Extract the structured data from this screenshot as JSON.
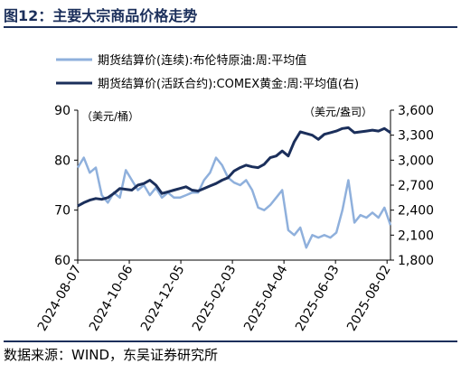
{
  "title": "图12：主要大宗商品价格走势",
  "source": "数据来源：WIND，东吴证券研究所",
  "chart_data": {
    "type": "line",
    "grid": false,
    "legend_position": "top",
    "left_unit": "（美元/桶）",
    "right_unit": "（美元/盎司）",
    "y_left": {
      "min": 60,
      "max": 90,
      "ticks": [
        "60",
        "70",
        "80",
        "90"
      ]
    },
    "y_right": {
      "min": 1800,
      "max": 3600,
      "ticks": [
        "1,800",
        "2,100",
        "2,400",
        "2,700",
        "3,000",
        "3,300",
        "3,600"
      ]
    },
    "x": [
      "2024-08-07",
      "2024-08-14",
      "2024-08-21",
      "2024-08-28",
      "2024-09-04",
      "2024-09-11",
      "2024-09-18",
      "2024-09-25",
      "2024-10-02",
      "2024-10-09",
      "2024-10-16",
      "2024-10-23",
      "2024-10-30",
      "2024-11-06",
      "2024-11-13",
      "2024-11-20",
      "2024-11-27",
      "2024-12-04",
      "2024-12-11",
      "2024-12-18",
      "2024-12-25",
      "2025-01-01",
      "2025-01-08",
      "2025-01-15",
      "2025-01-22",
      "2025-01-29",
      "2025-02-05",
      "2025-02-12",
      "2025-02-19",
      "2025-02-26",
      "2025-03-05",
      "2025-03-12",
      "2025-03-19",
      "2025-03-26",
      "2025-04-02",
      "2025-04-09",
      "2025-04-16",
      "2025-04-23",
      "2025-04-30",
      "2025-05-07",
      "2025-05-14",
      "2025-05-21",
      "2025-05-28",
      "2025-06-04",
      "2025-06-11",
      "2025-06-18",
      "2025-06-25",
      "2025-07-02",
      "2025-07-09",
      "2025-07-16",
      "2025-07-23",
      "2025-07-30",
      "2025-08-06"
    ],
    "x_tick_labels": [
      "2024-08-07",
      "2024-10-06",
      "2024-12-05",
      "2025-02-03",
      "2025-04-04",
      "2025-06-03",
      "2025-08-02"
    ],
    "series": [
      {
        "name": "期货结算价(连续):布伦特原油:周:平均值",
        "axis": "left",
        "color": "#8fb0dc",
        "values": [
          78.5,
          80.5,
          77.5,
          78.5,
          73.0,
          71.5,
          73.5,
          72.5,
          78.0,
          76.0,
          74.0,
          75.0,
          73.0,
          74.5,
          72.5,
          73.5,
          72.5,
          72.5,
          73.0,
          73.5,
          73.5,
          76.0,
          77.5,
          80.5,
          79.0,
          76.5,
          75.5,
          75.0,
          76.0,
          74.0,
          70.5,
          70.0,
          71.0,
          72.5,
          74.0,
          66.0,
          65.0,
          66.5,
          62.5,
          65.0,
          64.5,
          65.0,
          64.5,
          65.5,
          70.0,
          76.0,
          67.5,
          69.0,
          68.5,
          69.5,
          68.5,
          70.5,
          67.0
        ]
      },
      {
        "name": "期货结算价(活跃合约):COMEX黄金:周:平均值(右)",
        "axis": "right",
        "color": "#1b2f5b",
        "values": [
          2450,
          2490,
          2520,
          2540,
          2530,
          2550,
          2600,
          2660,
          2650,
          2640,
          2700,
          2720,
          2760,
          2700,
          2600,
          2620,
          2640,
          2660,
          2680,
          2640,
          2630,
          2660,
          2690,
          2720,
          2760,
          2790,
          2870,
          2910,
          2940,
          2920,
          2910,
          2950,
          3030,
          3050,
          3110,
          3050,
          3220,
          3340,
          3320,
          3300,
          3250,
          3310,
          3330,
          3350,
          3380,
          3390,
          3330,
          3340,
          3350,
          3360,
          3350,
          3380,
          3330
        ]
      }
    ]
  }
}
